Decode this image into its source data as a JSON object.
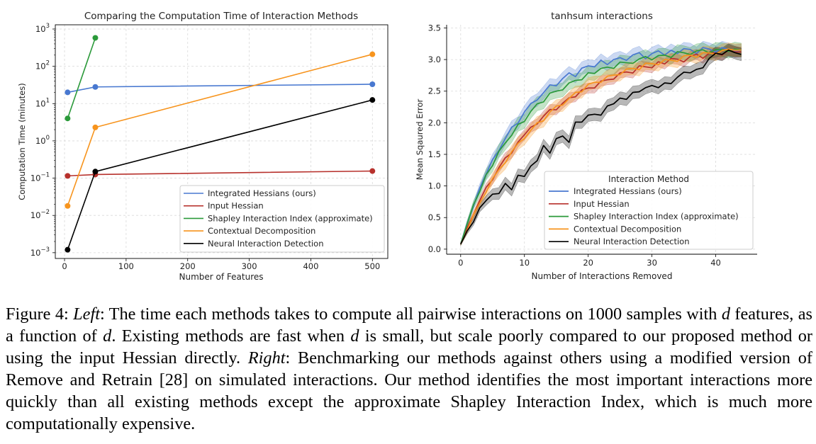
{
  "chart_data": [
    {
      "type": "line",
      "title": "Comparing the Computation Time of Interaction Methods",
      "xlabel": "Number of Features",
      "ylabel": "Computation Time (minutes)",
      "xlim": [
        -15,
        525
      ],
      "ylim": [
        0.0007,
        1300
      ],
      "yscale": "log",
      "grid": true,
      "xticks": [
        0,
        100,
        200,
        300,
        400,
        500
      ],
      "yticks": [
        {
          "value": 0.001,
          "base": "10",
          "exp": "−3"
        },
        {
          "value": 0.01,
          "base": "10",
          "exp": "−2"
        },
        {
          "value": 0.1,
          "base": "10",
          "exp": "−1"
        },
        {
          "value": 1,
          "base": "10",
          "exp": "0"
        },
        {
          "value": 10,
          "base": "10",
          "exp": "1"
        },
        {
          "value": 100,
          "base": "10",
          "exp": "2"
        },
        {
          "value": 1000,
          "base": "10",
          "exp": "3"
        }
      ],
      "legend_position": "lower-right",
      "series": [
        {
          "name": "Integrated Hessians (ours)",
          "color": "#4878d0",
          "x": [
            5,
            50,
            500
          ],
          "y": [
            20,
            28,
            33
          ]
        },
        {
          "name": "Input Hessian",
          "color": "#b7312c",
          "x": [
            5,
            50,
            500
          ],
          "y": [
            0.115,
            0.125,
            0.155
          ]
        },
        {
          "name": "Shapley Interaction Index (approximate)",
          "color": "#2b9a3a",
          "x": [
            5,
            50
          ],
          "y": [
            4,
            580
          ]
        },
        {
          "name": "Contextual Decomposition",
          "color": "#f7941d",
          "x": [
            5,
            50,
            500
          ],
          "y": [
            0.018,
            2.3,
            210
          ]
        },
        {
          "name": "Neural Interaction Detection",
          "color": "#000000",
          "x": [
            5,
            50,
            500
          ],
          "y": [
            0.0012,
            0.15,
            12.5
          ]
        }
      ]
    },
    {
      "type": "line",
      "title": "tanhsum interactions",
      "xlabel": "Number of Interactions Removed",
      "ylabel": "Mean Sqaured Error",
      "xlim": [
        -2.2,
        46.5
      ],
      "ylim": [
        -0.08,
        3.55
      ],
      "yscale": "linear",
      "grid": true,
      "xticks": [
        0,
        10,
        20,
        30,
        40
      ],
      "yticks": [
        0.0,
        0.5,
        1.0,
        1.5,
        2.0,
        2.5,
        3.0,
        3.5
      ],
      "legend_title": "Interaction Method",
      "legend_position": "lower-right",
      "x_max": 44,
      "series": [
        {
          "name": "Integrated Hessians (ours)",
          "color": "#4878d0",
          "band": 0.1,
          "anchors": [
            [
              0,
              0.08
            ],
            [
              2,
              0.7
            ],
            [
              4,
              1.2
            ],
            [
              6,
              1.58
            ],
            [
              8,
              1.9
            ],
            [
              10,
              2.15
            ],
            [
              12,
              2.38
            ],
            [
              14,
              2.55
            ],
            [
              16,
              2.68
            ],
            [
              18,
              2.78
            ],
            [
              20,
              2.87
            ],
            [
              22,
              2.94
            ],
            [
              25,
              3.0
            ],
            [
              28,
              3.05
            ],
            [
              32,
              3.1
            ],
            [
              36,
              3.13
            ],
            [
              40,
              3.15
            ],
            [
              44,
              3.15
            ]
          ],
          "jitter": [
            0,
            0.01,
            -0.02,
            0.02,
            -0.01,
            0.03,
            -0.02,
            0.01,
            0.03,
            -0.03,
            0.02,
            0.04,
            -0.02,
            0.01,
            0.05,
            -0.03,
            0.02,
            0.06,
            -0.05,
            0.04,
            0.03,
            -0.02,
            0.05,
            -0.04,
            0.02,
            0.03,
            -0.03,
            0.04,
            0.06,
            -0.05,
            0.02,
            0.05,
            -0.03,
            0.04,
            -0.02,
            0.05,
            0.03,
            -0.04,
            0.05,
            0.02,
            -0.03,
            0.04,
            0.01,
            -0.02,
            0.0
          ]
        },
        {
          "name": "Input Hessian",
          "color": "#b7312c",
          "band": 0.08,
          "anchors": [
            [
              0,
              0.08
            ],
            [
              2,
              0.55
            ],
            [
              4,
              0.95
            ],
            [
              6,
              1.28
            ],
            [
              8,
              1.55
            ],
            [
              10,
              1.8
            ],
            [
              12,
              2.0
            ],
            [
              14,
              2.17
            ],
            [
              16,
              2.3
            ],
            [
              18,
              2.43
            ],
            [
              20,
              2.53
            ],
            [
              22,
              2.63
            ],
            [
              25,
              2.75
            ],
            [
              28,
              2.85
            ],
            [
              32,
              2.95
            ],
            [
              36,
              3.02
            ],
            [
              40,
              3.08
            ],
            [
              44,
              3.12
            ]
          ],
          "jitter": [
            0,
            0.02,
            -0.01,
            0.02,
            0.03,
            -0.02,
            0.01,
            0.03,
            -0.03,
            0.02,
            0.01,
            0.03,
            -0.02,
            0.02,
            0.04,
            -0.03,
            0.01,
            0.03,
            -0.02,
            0.04,
            0.02,
            -0.03,
            0.03,
            0.01,
            -0.02,
            0.04,
            0.02,
            -0.03,
            0.05,
            0.01,
            -0.03,
            0.04,
            -0.02,
            0.05,
            0.02,
            -0.04,
            0.03,
            0.05,
            -0.03,
            0.04,
            0.02,
            -0.02,
            0.05,
            0.01,
            0.0
          ]
        },
        {
          "name": "Shapley Interaction Index (approximate)",
          "color": "#2b9a3a",
          "band": 0.11,
          "anchors": [
            [
              0,
              0.08
            ],
            [
              2,
              0.68
            ],
            [
              4,
              1.16
            ],
            [
              6,
              1.52
            ],
            [
              8,
              1.82
            ],
            [
              10,
              2.05
            ],
            [
              12,
              2.27
            ],
            [
              14,
              2.43
            ],
            [
              16,
              2.55
            ],
            [
              18,
              2.65
            ],
            [
              20,
              2.75
            ],
            [
              22,
              2.83
            ],
            [
              25,
              2.92
            ],
            [
              28,
              2.98
            ],
            [
              32,
              3.05
            ],
            [
              36,
              3.1
            ],
            [
              40,
              3.13
            ],
            [
              44,
              3.15
            ]
          ],
          "jitter": [
            0,
            0.01,
            0.02,
            -0.01,
            0.02,
            -0.02,
            0.03,
            0.01,
            -0.02,
            0.04,
            -0.03,
            0.02,
            0.03,
            -0.02,
            0.04,
            0.01,
            -0.03,
            0.03,
            0.02,
            -0.02,
            0.04,
            -0.01,
            0.03,
            0.02,
            -0.03,
            0.04,
            0.01,
            -0.02,
            0.03,
            0.05,
            -0.02,
            0.03,
            0.02,
            -0.03,
            0.05,
            0.02,
            -0.02,
            0.03,
            0.04,
            -0.02,
            0.03,
            0.02,
            -0.01,
            0.02,
            0.0
          ]
        },
        {
          "name": "Contextual Decomposition",
          "color": "#f7941d",
          "band": 0.1,
          "anchors": [
            [
              0,
              0.08
            ],
            [
              2,
              0.52
            ],
            [
              4,
              0.92
            ],
            [
              6,
              1.25
            ],
            [
              8,
              1.52
            ],
            [
              10,
              1.77
            ],
            [
              12,
              1.97
            ],
            [
              14,
              2.15
            ],
            [
              16,
              2.3
            ],
            [
              18,
              2.45
            ],
            [
              20,
              2.57
            ],
            [
              22,
              2.67
            ],
            [
              25,
              2.78
            ],
            [
              28,
              2.87
            ],
            [
              32,
              2.96
            ],
            [
              36,
              3.04
            ],
            [
              40,
              3.1
            ],
            [
              44,
              3.15
            ]
          ],
          "jitter": [
            0,
            -0.01,
            0.02,
            0.01,
            -0.02,
            0.03,
            0.01,
            -0.02,
            0.02,
            0.03,
            -0.02,
            0.01,
            0.03,
            -0.03,
            0.02,
            0.04,
            -0.02,
            0.01,
            0.03,
            -0.02,
            0.04,
            0.02,
            -0.03,
            0.03,
            0.01,
            -0.02,
            0.04,
            0.02,
            -0.03,
            0.05,
            0.02,
            -0.02,
            0.04,
            0.01,
            -0.03,
            0.04,
            0.03,
            -0.02,
            0.04,
            0.02,
            -0.02,
            0.03,
            0.04,
            0.01,
            0.0
          ]
        },
        {
          "name": "Neural Interaction Detection",
          "color": "#000000",
          "band": 0.1,
          "anchors": [
            [
              0,
              0.08
            ],
            [
              2,
              0.45
            ],
            [
              4,
              0.8
            ],
            [
              6,
              0.9
            ],
            [
              7,
              1.0
            ],
            [
              8,
              0.97
            ],
            [
              9,
              1.15
            ],
            [
              10,
              1.15
            ],
            [
              12,
              1.42
            ],
            [
              13,
              1.6
            ],
            [
              14,
              1.55
            ],
            [
              15,
              1.73
            ],
            [
              16,
              1.78
            ],
            [
              17,
              1.72
            ],
            [
              18,
              1.98
            ],
            [
              20,
              2.08
            ],
            [
              22,
              2.15
            ],
            [
              24,
              2.32
            ],
            [
              26,
              2.38
            ],
            [
              28,
              2.52
            ],
            [
              30,
              2.55
            ],
            [
              32,
              2.6
            ],
            [
              34,
              2.7
            ],
            [
              35,
              2.82
            ],
            [
              36,
              2.75
            ],
            [
              38,
              2.9
            ],
            [
              40,
              3.08
            ],
            [
              42,
              3.12
            ],
            [
              44,
              3.08
            ]
          ],
          "jitter": [
            0,
            0.02,
            -0.02,
            0.03,
            -0.03,
            0.02,
            -0.02,
            0.04,
            -0.03,
            0.02,
            0.0,
            0.03,
            -0.02,
            0.04,
            -0.03,
            0.02,
            0.01,
            -0.03,
            0.03,
            -0.02,
            0.04,
            0.02,
            -0.03,
            0.03,
            -0.02,
            0.04,
            -0.01,
            0.03,
            -0.03,
            0.02,
            0.04,
            -0.02,
            0.03,
            -0.03,
            0.02,
            -0.02,
            0.04,
            0.02,
            -0.03,
            0.03,
            0.02,
            -0.02,
            0.03,
            0.01,
            0.0
          ]
        }
      ]
    }
  ],
  "caption": {
    "label": "Figure 4:",
    "left_word": "Left",
    "text1": ": The time each methods takes to compute all pairwise interactions on 1000 samples with ",
    "d1": "d",
    "text2": " features, as a function of ",
    "d2": "d",
    "text3": ". Existing methods are fast when ",
    "d3": "d",
    "text4": " is small, but scale poorly compared to our proposed method or using the input Hessian directly. ",
    "right_word": "Right",
    "text5": ": Benchmarking our methods against others using a modified version of Remove and Retrain [28] on simulated interactions. Our method identifies the most important interactions more quickly than all existing methods except the approximate Shapley Interaction Index, which is much more computationally expensive."
  }
}
